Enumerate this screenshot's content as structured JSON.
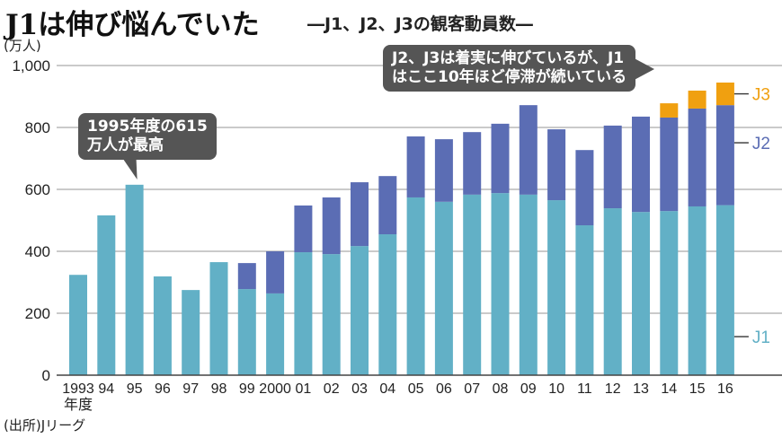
{
  "header": {
    "title": "J1は伸び悩んでいた",
    "subtitle": "―J1、J2、J3の観客動員数―"
  },
  "unit_label": "(万人)",
  "source_label": "(出所)Jリーグ",
  "callouts": {
    "peak": [
      "1995年度の615",
      "万人が最高"
    ],
    "trend": [
      "J2、J3は着実に伸びているが、J1",
      "はここ10年ほど停滞が続いている"
    ]
  },
  "colors": {
    "J1": "#62b0c6",
    "J2": "#5b6db4",
    "J3": "#f0a010",
    "grid": "#aaaaaa",
    "callout_bg": "#555555"
  },
  "chart_data": {
    "type": "bar",
    "stacked": true,
    "title": "J1は伸び悩んでいた",
    "subtitle": "―J1、J2、J3の観客動員数―",
    "xlabel": "年度",
    "ylabel": "(万人)",
    "ylim": [
      0,
      1000
    ],
    "yticks": [
      0,
      200,
      400,
      600,
      800,
      1000
    ],
    "ytick_labels": [
      "0",
      "200",
      "400",
      "600",
      "800",
      "1,000"
    ],
    "grid": true,
    "categories": [
      "1993",
      "94",
      "95",
      "96",
      "97",
      "98",
      "99",
      "2000",
      "01",
      "02",
      "03",
      "04",
      "05",
      "06",
      "07",
      "08",
      "09",
      "10",
      "11",
      "12",
      "13",
      "14",
      "15",
      "16"
    ],
    "first_category_sublabel": "年度",
    "series": [
      {
        "name": "J1",
        "values": [
          324,
          516,
          615,
          319,
          275,
          365,
          278,
          264,
          397,
          391,
          417,
          455,
          574,
          560,
          583,
          588,
          583,
          565,
          484,
          539,
          527,
          530,
          545,
          549
        ]
      },
      {
        "name": "J2",
        "values": [
          0,
          0,
          0,
          0,
          0,
          0,
          84,
          136,
          151,
          183,
          206,
          188,
          197,
          202,
          202,
          224,
          289,
          229,
          243,
          267,
          308,
          302,
          316,
          323
        ]
      },
      {
        "name": "J3",
        "values": [
          0,
          0,
          0,
          0,
          0,
          0,
          0,
          0,
          0,
          0,
          0,
          0,
          0,
          0,
          0,
          0,
          0,
          0,
          0,
          0,
          0,
          46,
          58,
          73
        ]
      }
    ],
    "legend": [
      "J3",
      "J2",
      "J1"
    ],
    "legend_placement": "right, inline labels",
    "annotations": [
      "1995年度の615万人が最高",
      "J2、J3は着実に伸びているが、J1はここ10年ほど停滞が続いている"
    ],
    "source": "(出所)Jリーグ"
  }
}
